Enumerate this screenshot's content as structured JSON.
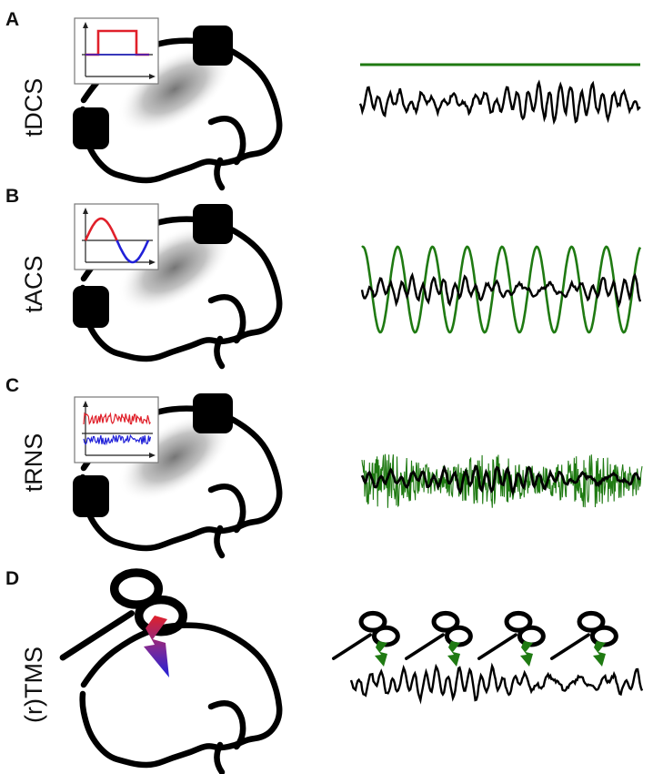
{
  "panels": [
    {
      "letter": "A",
      "method": "tDCS"
    },
    {
      "letter": "B",
      "method": "tACS"
    },
    {
      "letter": "C",
      "method": "tRNS"
    },
    {
      "letter": "D",
      "method": "(r)TMS"
    }
  ],
  "colors": {
    "stimulation": "#1f7a12",
    "eeg": "#000000",
    "positive": "#e0202a",
    "negative": "#2020d8",
    "electrode": "#000000",
    "field_shade": "#8a8a8a"
  },
  "icons": [
    "electrode-pad",
    "waveform-inset",
    "tms-figure-eight-coil",
    "lightning-bolt"
  ]
}
